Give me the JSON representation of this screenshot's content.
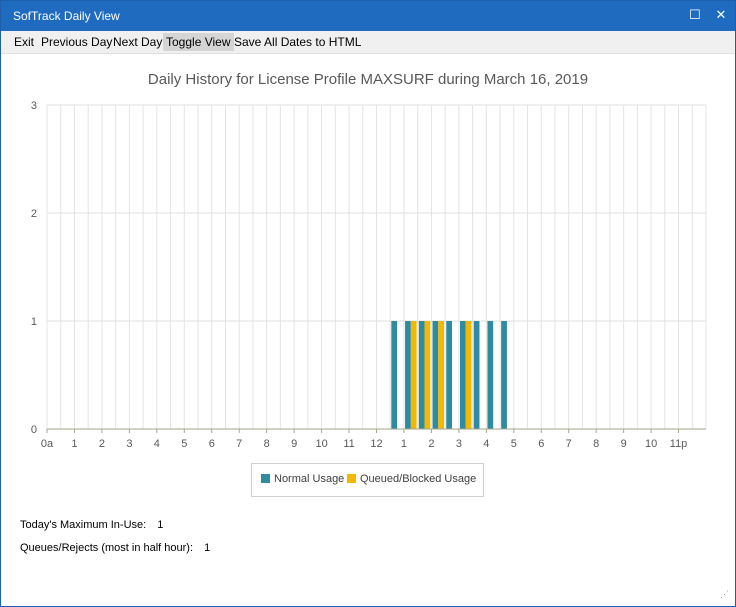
{
  "window": {
    "title": "SofTrack Daily View"
  },
  "menu": {
    "items": [
      "Exit",
      "Previous Day",
      "Next Day",
      "Toggle View",
      "Save All Dates to HTML"
    ],
    "active_index": 3
  },
  "chart_data": {
    "type": "bar",
    "title": "Daily History for License Profile MAXSURF during March 16, 2019",
    "ylim": [
      0,
      3
    ],
    "yticks": [
      0,
      1,
      2,
      3
    ],
    "x_tick_labels": [
      "0a",
      "1",
      "2",
      "3",
      "4",
      "5",
      "6",
      "7",
      "8",
      "9",
      "10",
      "11",
      "12",
      "1",
      "2",
      "3",
      "4",
      "5",
      "6",
      "7",
      "8",
      "9",
      "10",
      "11p"
    ],
    "grid": true,
    "legend_position": "bottom-center",
    "series": [
      {
        "name": "Normal Usage",
        "color": "#2e8ba0",
        "values": [
          0,
          0,
          0,
          0,
          0,
          0,
          0,
          0,
          0,
          0,
          0,
          0,
          0,
          0,
          0,
          0,
          0,
          0,
          0,
          0,
          0,
          0,
          0,
          0,
          0,
          1,
          1,
          1,
          1,
          1,
          1,
          1,
          1,
          1,
          0,
          0,
          0,
          0,
          0,
          0,
          0,
          0,
          0,
          0,
          0,
          0,
          0,
          0
        ]
      },
      {
        "name": "Queued/Blocked Usage",
        "color": "#f5b800",
        "values": [
          0,
          0,
          0,
          0,
          0,
          0,
          0,
          0,
          0,
          0,
          0,
          0,
          0,
          0,
          0,
          0,
          0,
          0,
          0,
          0,
          0,
          0,
          0,
          0,
          0,
          0,
          1,
          1,
          1,
          0,
          1,
          0,
          0,
          0,
          0,
          0,
          0,
          0,
          0,
          0,
          0,
          0,
          0,
          0,
          0,
          0,
          0,
          0
        ]
      }
    ]
  },
  "stats": {
    "max_in_use_label": "Today's Maximum In-Use:",
    "max_in_use_value": "1",
    "queues_label": "Queues/Rejects (most in half hour):",
    "queues_value": "1"
  }
}
